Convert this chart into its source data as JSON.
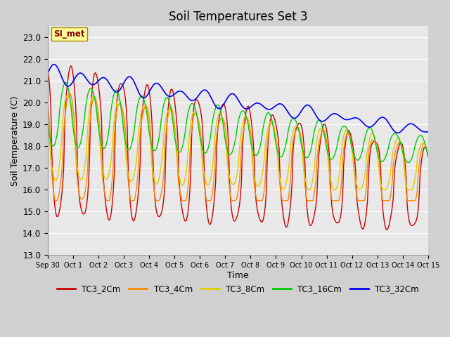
{
  "title": "Soil Temperatures Set 3",
  "xlabel": "Time",
  "ylabel": "Soil Temperature (C)",
  "ylim": [
    13.0,
    23.5
  ],
  "yticks": [
    13.0,
    14.0,
    15.0,
    16.0,
    17.0,
    18.0,
    19.0,
    20.0,
    21.0,
    22.0,
    23.0
  ],
  "x_labels": [
    "Sep 30",
    "Oct 1",
    "Oct 2",
    "Oct 3",
    "Oct 4",
    "Oct 5",
    "Oct 6",
    "Oct 7",
    "Oct 8",
    "Oct 9",
    "Oct 10",
    "Oct 11",
    "Oct 12",
    "Oct 13",
    "Oct 14",
    "Oct 15"
  ],
  "colors": {
    "TC3_2Cm": "#cc0000",
    "TC3_4Cm": "#ff8800",
    "TC3_8Cm": "#ddcc00",
    "TC3_16Cm": "#00cc00",
    "TC3_32Cm": "#0000ee"
  },
  "fig_bg": "#d0d0d0",
  "plot_bg": "#e8e8e8",
  "grid_color": "#ffffff",
  "annotation_text": "SI_met",
  "annotation_bg": "#ffff99",
  "annotation_border": "#aa8800"
}
